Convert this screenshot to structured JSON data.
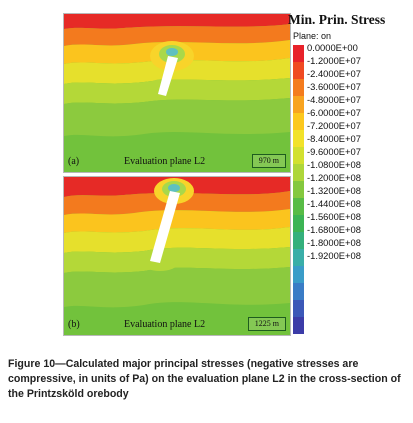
{
  "panels": [
    {
      "label": "(a)",
      "caption": "Evaluation plane L2",
      "scale": "970 m"
    },
    {
      "label": "(b)",
      "caption": "Evaluation plane L2",
      "scale": "1225 m"
    }
  ],
  "legend": {
    "title": "Min. Prin. Stress",
    "subtitle": "Plane: on",
    "values": [
      "0.0000E+00",
      "-1.2000E+07",
      "-2.4000E+07",
      "-3.6000E+07",
      "-4.8000E+07",
      "-6.0000E+07",
      "-7.2000E+07",
      "-8.4000E+07",
      "-9.6000E+07",
      "-1.0800E+08",
      "-1.2000E+08",
      "-1.3200E+08",
      "-1.4400E+08",
      "-1.5600E+08",
      "-1.6800E+08",
      "-1.8000E+08",
      "-1.9200E+08"
    ],
    "colors": [
      "#e8222a",
      "#f04a22",
      "#f47c1e",
      "#f8a420",
      "#fcc81e",
      "#f2e22a",
      "#d2e030",
      "#aed63a",
      "#84c83e",
      "#58bc46",
      "#3cb454",
      "#34b07c",
      "#3aaea8",
      "#3a9cc8",
      "#3a7cc6",
      "#3c58b8",
      "#3c3ca8"
    ]
  },
  "caption": {
    "text": "Figure 10—Calculated major principal stresses (negative stresses are compressive, in units of Pa) on the evaluation plane L2 in the cross-section of the Printzsköld orebody"
  }
}
